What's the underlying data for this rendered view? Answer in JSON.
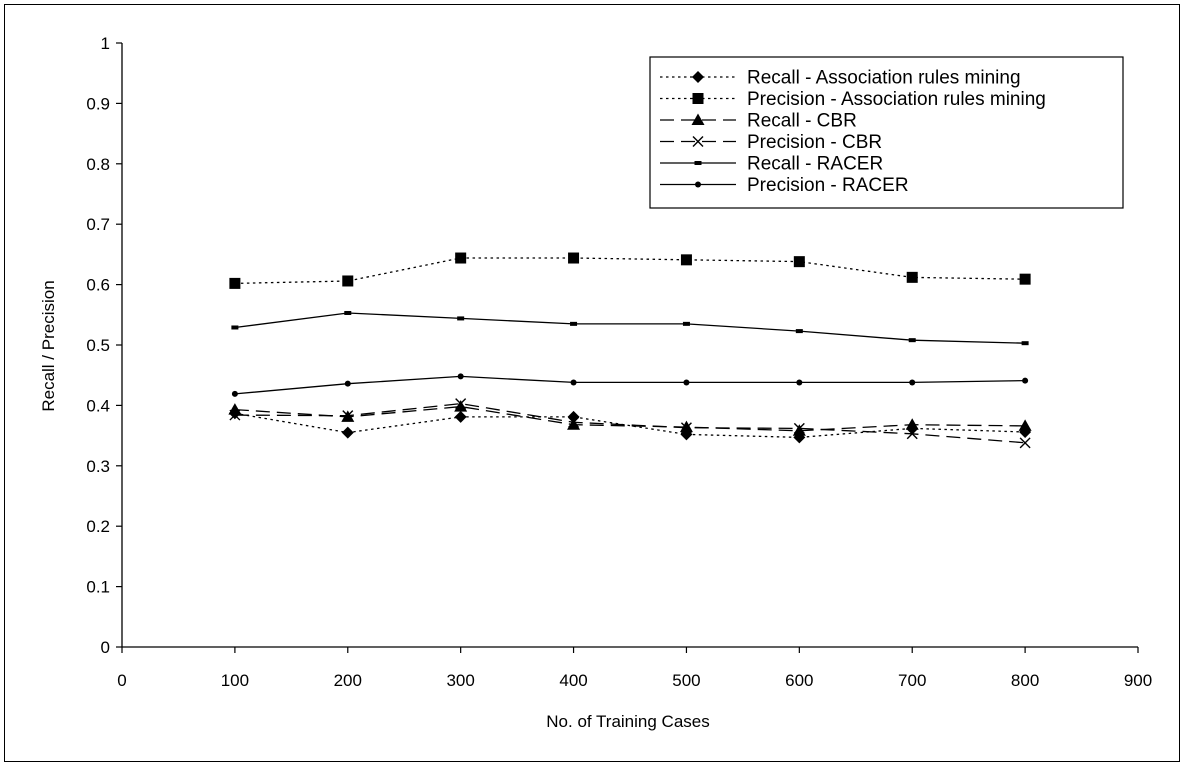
{
  "chart_data": {
    "type": "line",
    "title": "",
    "xlabel": "No. of Training Cases",
    "ylabel": "Recall / Precision",
    "xlim": [
      0,
      900
    ],
    "ylim": [
      0,
      1
    ],
    "x_ticks": [
      0,
      100,
      200,
      300,
      400,
      500,
      600,
      700,
      800,
      900
    ],
    "y_ticks": [
      0,
      0.1,
      0.2,
      0.3,
      0.4,
      0.5,
      0.6,
      0.7,
      0.8,
      0.9,
      1
    ],
    "y_tick_labels": [
      "0",
      "0.1",
      "0.2",
      "0.3",
      "0.4",
      "0.5",
      "0.6",
      "0.7",
      "0.8",
      "0.9",
      "1"
    ],
    "grid": false,
    "legend_position": "top-right",
    "x": [
      100,
      200,
      300,
      400,
      500,
      600,
      700,
      800
    ],
    "series": [
      {
        "name": "Recall - Association rules mining",
        "marker": "diamond",
        "dash": "dotted",
        "values": [
          0.387,
          0.355,
          0.381,
          0.381,
          0.352,
          0.347,
          0.362,
          0.356
        ]
      },
      {
        "name": "Precision - Association rules mining",
        "marker": "square",
        "dash": "dotted",
        "values": [
          0.602,
          0.606,
          0.644,
          0.644,
          0.641,
          0.638,
          0.612,
          0.609
        ]
      },
      {
        "name": "Recall - CBR",
        "marker": "triangle",
        "dash": "dashed",
        "values": [
          0.393,
          0.381,
          0.398,
          0.368,
          0.364,
          0.358,
          0.368,
          0.366
        ]
      },
      {
        "name": "Precision - CBR",
        "marker": "x",
        "dash": "dashed",
        "values": [
          0.384,
          0.383,
          0.403,
          0.372,
          0.363,
          0.362,
          0.353,
          0.338
        ]
      },
      {
        "name": "Recall - RACER",
        "marker": "dash",
        "dash": "solid",
        "values": [
          0.529,
          0.553,
          0.544,
          0.535,
          0.535,
          0.523,
          0.508,
          0.503
        ]
      },
      {
        "name": "Precision - RACER",
        "marker": "dot",
        "dash": "solid",
        "values": [
          0.419,
          0.436,
          0.448,
          0.438,
          0.438,
          0.438,
          0.438,
          0.441
        ]
      }
    ]
  }
}
